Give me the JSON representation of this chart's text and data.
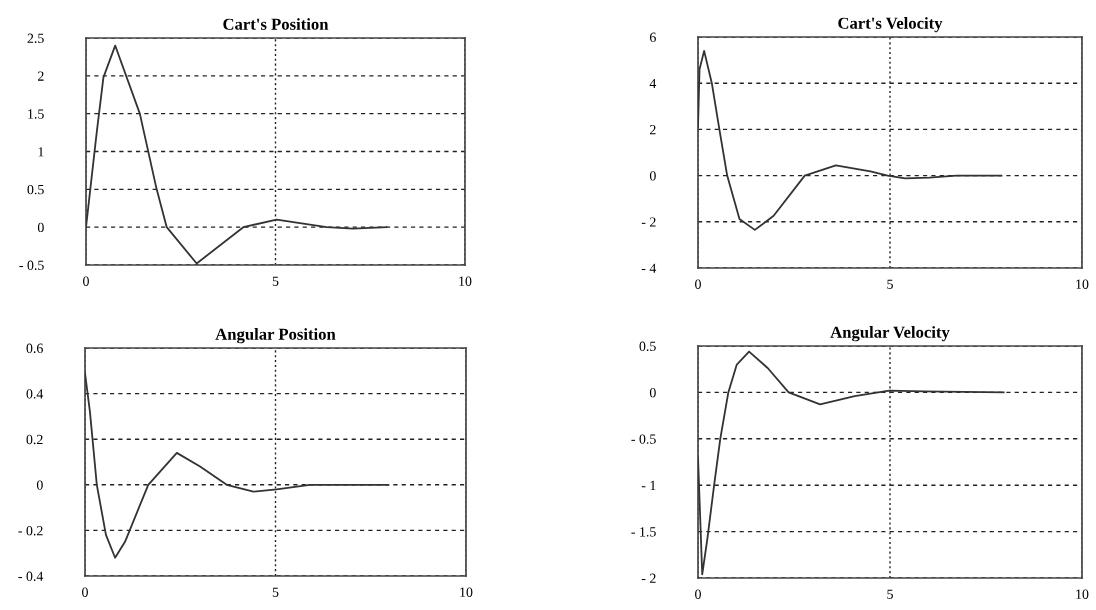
{
  "chart_data": [
    {
      "type": "line",
      "title": "Cart's Position",
      "xlim": [
        0,
        10
      ],
      "xticks": [
        0,
        5,
        10
      ],
      "ylim": [
        -0.5,
        2.5
      ],
      "yticks": [
        {
          "value": -0.5,
          "label": "- 0.5"
        },
        0,
        0.5,
        1,
        1.5,
        2,
        2.5
      ],
      "grid": true,
      "color": "#333333",
      "x": [
        0,
        0.28,
        0.46,
        0.77,
        1.42,
        1.86,
        2.13,
        2.92,
        4.15,
        5.03,
        6.35,
        7.05,
        7.93
      ],
      "values": [
        0,
        1.24,
        1.98,
        2.4,
        1.5,
        0.51,
        0,
        -0.48,
        0,
        0.1,
        0,
        -0.02,
        0
      ]
    },
    {
      "type": "line",
      "title": "Cart's Velocity",
      "xlim": [
        0,
        10
      ],
      "xticks": [
        0,
        5,
        10
      ],
      "ylim": [
        -4,
        6
      ],
      "yticks": [
        {
          "value": -4,
          "label": "- 4"
        },
        {
          "value": -2,
          "label": "- 2"
        },
        0,
        2,
        4,
        6
      ],
      "grid": true,
      "color": "#333333",
      "x": [
        0,
        0.04,
        0.16,
        0.36,
        0.56,
        0.76,
        1.08,
        1.48,
        1.97,
        2.78,
        3.59,
        4.49,
        4.94,
        5.39,
        6.02,
        6.73,
        7.9
      ],
      "values": [
        2.1,
        4.6,
        5.4,
        4.0,
        1.97,
        0,
        -1.88,
        -2.35,
        -1.74,
        0,
        0.44,
        0.18,
        0,
        -0.12,
        -0.09,
        0,
        0
      ]
    },
    {
      "type": "line",
      "title": "Angular Position",
      "xlim": [
        0,
        10
      ],
      "xticks": [
        0,
        5,
        10
      ],
      "ylim": [
        -0.4,
        0.6
      ],
      "yticks": [
        {
          "value": -0.4,
          "label": "- 0.4"
        },
        {
          "value": -0.2,
          "label": "- 0.2"
        },
        0,
        0.2,
        0.4,
        0.6
      ],
      "grid": true,
      "color": "#333333",
      "x": [
        0,
        0.13,
        0.31,
        0.55,
        0.79,
        1.05,
        1.66,
        2.41,
        3.02,
        3.72,
        4.42,
        5.03,
        5.9,
        7.96
      ],
      "values": [
        0.49,
        0.32,
        0,
        -0.22,
        -0.32,
        -0.25,
        0,
        0.14,
        0.08,
        0,
        -0.03,
        -0.02,
        0,
        0
      ]
    },
    {
      "type": "line",
      "title": "Angular Velocity",
      "xlim": [
        0,
        10
      ],
      "xticks": [
        0,
        5,
        10
      ],
      "ylim": [
        -2,
        0.5
      ],
      "yticks": [
        {
          "value": -2,
          "label": "- 2"
        },
        {
          "value": -1.5,
          "label": "- 1.5"
        },
        {
          "value": -1,
          "label": "- 1"
        },
        {
          "value": -0.5,
          "label": "- 0.5"
        },
        0,
        0.5
      ],
      "grid": true,
      "color": "#333333",
      "x": [
        0,
        0.11,
        0.24,
        0.42,
        0.58,
        0.79,
        1.01,
        1.33,
        1.82,
        2.36,
        3.18,
        4.08,
        4.98,
        5.88,
        7.96
      ],
      "values": [
        -0.7,
        -1.96,
        -1.59,
        -1.0,
        -0.5,
        0,
        0.3,
        0.44,
        0.26,
        0,
        -0.13,
        -0.04,
        0.02,
        0.01,
        0
      ]
    }
  ]
}
